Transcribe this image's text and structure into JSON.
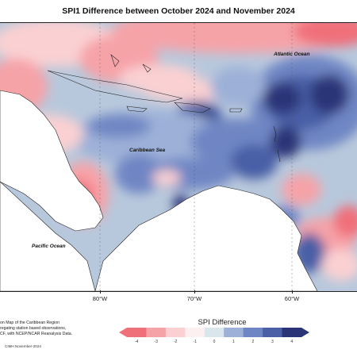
{
  "title": "SPI1 Difference between October 2024 and November 2024",
  "labels": {
    "atlantic": "Atlantic Ocean",
    "caribbean": "Caribbean Sea",
    "pacific": "Pacific Ocean"
  },
  "longitudes": [
    "80°W",
    "70°W",
    "60°W"
  ],
  "notes": {
    "line1": "on Map of the Caribbean Region",
    "line2": "regating station based observations,",
    "line3": "CF, with NCEP/NCAR Reanalysis Data.",
    "copyright": "CIMH November-2024"
  },
  "legend": {
    "title": "SPI Difference",
    "ticks": [
      "-4",
      "-3",
      "-2",
      "-1",
      "0",
      "1",
      "2",
      "3",
      "4"
    ],
    "colors": [
      "#f0707a",
      "#f6a3a8",
      "#fad0d2",
      "#fdf0f0",
      "#d9e6ec",
      "#9db1d8",
      "#6f86c4",
      "#4a5fa6",
      "#2a3578"
    ]
  }
}
